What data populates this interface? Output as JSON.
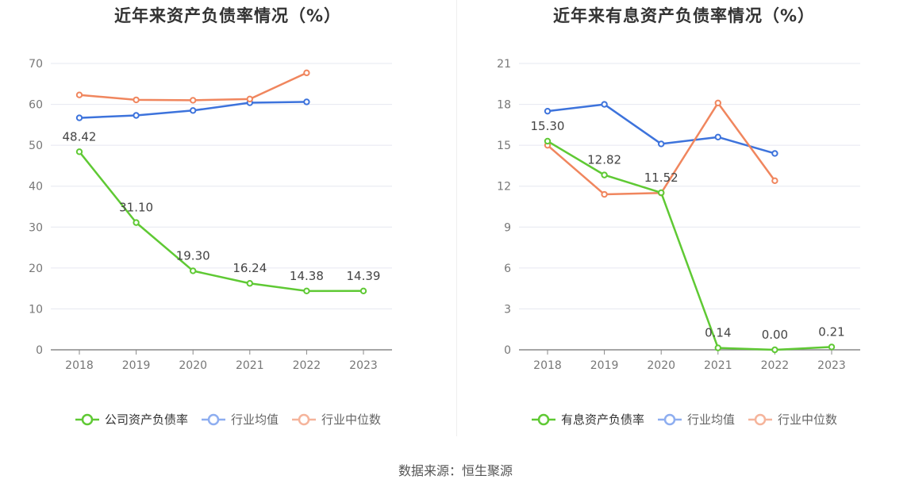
{
  "source": "数据来源：恒生聚源",
  "colors": {
    "green": "#5fc934",
    "blue": "#3d73dc",
    "orange": "#f0865e"
  },
  "chart_data": [
    {
      "type": "line",
      "title": "近年来资产负债率情况（%）",
      "x": [
        "2018",
        "2019",
        "2020",
        "2021",
        "2022",
        "2023"
      ],
      "ylim": [
        0,
        70
      ],
      "yticks": [
        "0",
        "10",
        "20",
        "30",
        "40",
        "50",
        "60",
        "70"
      ],
      "series": [
        {
          "name": "公司资产负债率",
          "color": "#5fc934",
          "values": [
            48.42,
            31.1,
            19.3,
            16.24,
            14.38,
            14.39
          ],
          "labels": [
            "48.42",
            "31.10",
            "19.30",
            "16.24",
            "14.38",
            "14.39"
          ]
        },
        {
          "name": "行业均值",
          "color": "#3d73dc",
          "values": [
            56.7,
            57.3,
            58.5,
            60.4,
            60.6,
            null
          ],
          "labels": null
        },
        {
          "name": "行业中位数",
          "color": "#f0865e",
          "values": [
            62.3,
            61.1,
            61.0,
            61.3,
            67.7,
            null
          ],
          "labels": null
        }
      ]
    },
    {
      "type": "line",
      "title": "近年来有息资产负债率情况（%）",
      "x": [
        "2018",
        "2019",
        "2020",
        "2021",
        "2022",
        "2023"
      ],
      "ylim": [
        0,
        21
      ],
      "yticks": [
        "0",
        "3",
        "6",
        "9",
        "12",
        "15",
        "18",
        "21"
      ],
      "series": [
        {
          "name": "有息资产负债率",
          "color": "#5fc934",
          "values": [
            15.3,
            12.82,
            11.52,
            0.14,
            0.0,
            0.21
          ],
          "labels": [
            "15.30",
            "12.82",
            "11.52",
            "0.14",
            "0.00",
            "0.21"
          ]
        },
        {
          "name": "行业均值",
          "color": "#3d73dc",
          "values": [
            17.5,
            18.0,
            15.1,
            15.6,
            14.4,
            null
          ],
          "labels": null
        },
        {
          "name": "行业中位数",
          "color": "#f0865e",
          "values": [
            15.0,
            11.4,
            11.5,
            18.1,
            12.4,
            null
          ],
          "labels": null
        }
      ]
    }
  ]
}
